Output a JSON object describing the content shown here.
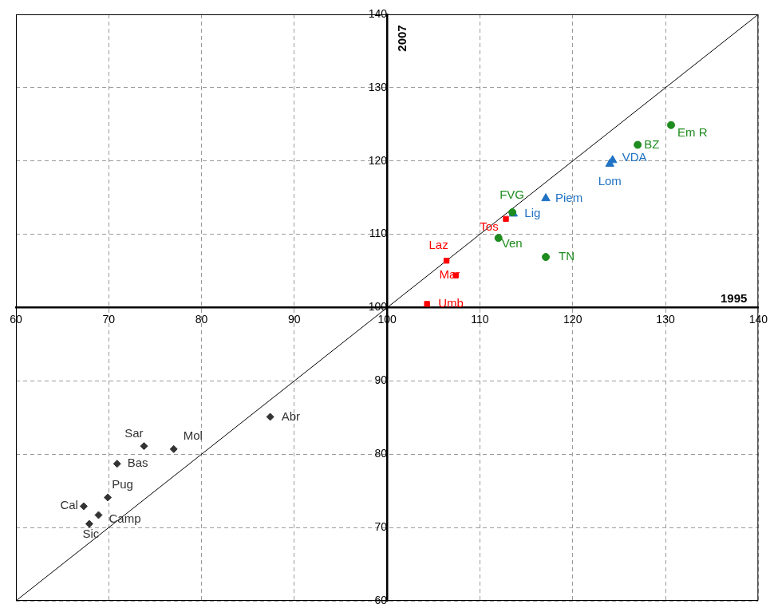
{
  "chart_data": {
    "type": "scatter",
    "x_label": "1995",
    "y_label": "2007",
    "xlim": [
      60,
      140
    ],
    "ylim": [
      60,
      140
    ],
    "xticks": [
      60,
      70,
      80,
      90,
      100,
      110,
      120,
      130,
      140
    ],
    "yticks": [
      60,
      70,
      80,
      90,
      100,
      110,
      120,
      130,
      140
    ],
    "grid": true,
    "reference_line": {
      "x": [
        60,
        140
      ],
      "y": [
        60,
        140
      ]
    },
    "series": [
      {
        "color": "#1e8c1e",
        "marker": "circle",
        "labels": [
          "Em R",
          "BZ",
          "FVG",
          "Ven",
          "TN"
        ],
        "x": [
          130.6,
          127.0,
          113.5,
          112.0,
          117.1
        ],
        "y": [
          124.9,
          122.2,
          113.0,
          109.5,
          106.9
        ]
      },
      {
        "color": "#1f72c4",
        "marker": "triangle",
        "labels": [
          "VDA",
          "Lom",
          "Piem",
          "Lig"
        ],
        "x": [
          124.3,
          124.0,
          117.1,
          113.6
        ],
        "y": [
          120.1,
          119.6,
          114.9,
          112.8
        ]
      },
      {
        "color": "#ff0000",
        "marker": "square",
        "labels": [
          "Tos",
          "Laz",
          "Mar",
          "Umb"
        ],
        "x": [
          112.8,
          106.4,
          107.4,
          104.3
        ],
        "y": [
          112.1,
          106.4,
          104.4,
          100.5
        ]
      },
      {
        "color": "#333333",
        "marker": "diamond",
        "labels": [
          "Abr",
          "Mol",
          "Sar",
          "Bas",
          "Pug",
          "Cal",
          "Camp",
          "Sic"
        ],
        "x": [
          87.4,
          77.0,
          73.8,
          70.9,
          69.9,
          67.3,
          68.9,
          67.9
        ],
        "y": [
          85.1,
          80.7,
          81.1,
          78.7,
          74.1,
          72.9,
          71.7,
          70.5
        ]
      }
    ]
  }
}
